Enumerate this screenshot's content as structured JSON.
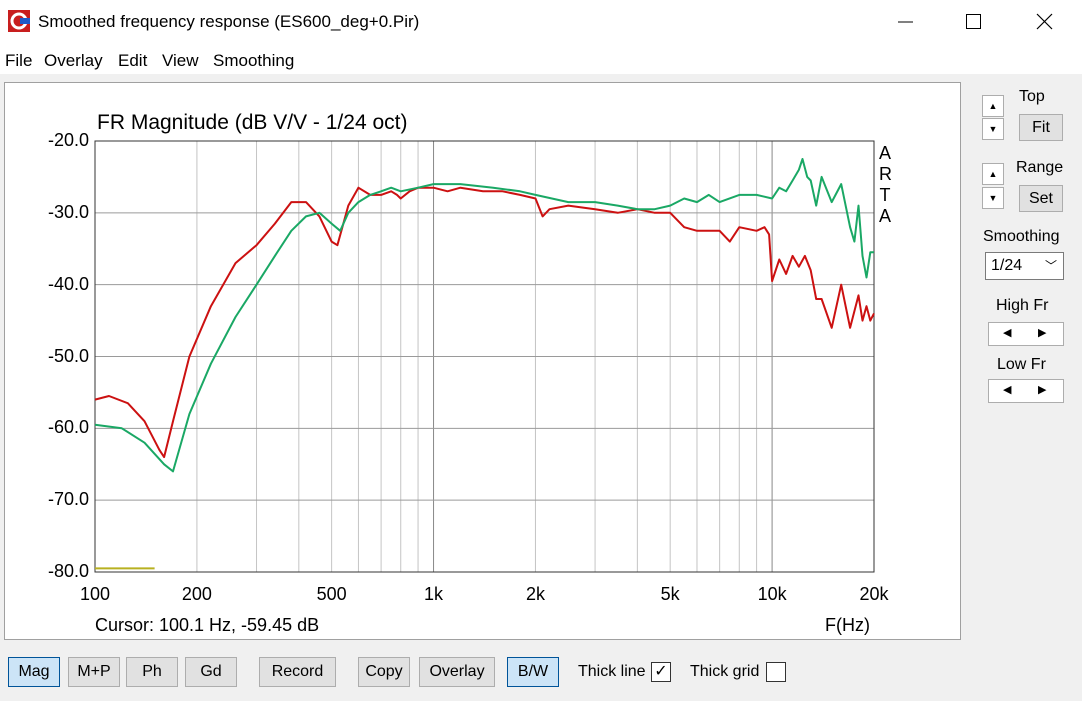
{
  "window": {
    "title": "Smoothed frequency response (ES600_deg+0.Pir)",
    "minimize_icon": "minimize-icon",
    "maximize_icon": "maximize-icon",
    "close_icon": "close-icon"
  },
  "menu": [
    "File",
    "Overlay",
    "Edit",
    "View",
    "Smoothing"
  ],
  "plot": {
    "title": "FR Magnitude (dB V/V - 1/24 oct)",
    "arta_letters": [
      "A",
      "R",
      "T",
      "A"
    ],
    "cursor_text": "Cursor: 100.1 Hz, -59.45 dB",
    "x_axis_label": "F(Hz)"
  },
  "side": {
    "top_label": "Top",
    "fit_label": "Fit",
    "range_label": "Range",
    "set_label": "Set",
    "smoothing_label": "Smoothing",
    "smoothing_value": "1/24",
    "high_fr_label": "High Fr",
    "low_fr_label": "Low Fr"
  },
  "bottom": {
    "mag": "Mag",
    "mp": "M+P",
    "ph": "Ph",
    "gd": "Gd",
    "record": "Record",
    "copy": "Copy",
    "overlay": "Overlay",
    "bw": "B/W",
    "thick_line": "Thick line",
    "thick_line_checked": true,
    "thick_grid": "Thick grid",
    "thick_grid_checked": false
  },
  "chart_data": {
    "type": "line",
    "title": "FR Magnitude (dB V/V - 1/24 oct)",
    "xlabel": "F(Hz)",
    "ylabel": "",
    "x_scale": "log",
    "xlim": [
      100,
      20000
    ],
    "ylim": [
      -80,
      -20
    ],
    "x_ticks": [
      "100",
      "200",
      "500",
      "1k",
      "2k",
      "5k",
      "10k",
      "20k"
    ],
    "y_ticks": [
      "-20.0",
      "-30.0",
      "-40.0",
      "-50.0",
      "-60.0",
      "-70.0",
      "-80.0"
    ],
    "grid": true,
    "series": [
      {
        "color": "#cc1111",
        "x": [
          100,
          110,
          125,
          140,
          155,
          160,
          170,
          190,
          220,
          260,
          300,
          340,
          380,
          420,
          460,
          500,
          520,
          560,
          600,
          650,
          700,
          750,
          780,
          800,
          850,
          900,
          1000,
          1100,
          1200,
          1400,
          1600,
          1800,
          2000,
          2100,
          2200,
          2500,
          3000,
          3500,
          4000,
          4500,
          5000,
          5500,
          6000,
          7000,
          7500,
          8000,
          9000,
          9500,
          9800,
          10000,
          10500,
          11000,
          11500,
          12000,
          12500,
          13000,
          13500,
          14000,
          15000,
          16000,
          17000,
          18000,
          18500,
          19000,
          19500,
          20000
        ],
        "y": [
          -56,
          -55.5,
          -56.5,
          -59,
          -63,
          -64,
          -59,
          -50,
          -43,
          -37,
          -34.5,
          -31.5,
          -28.5,
          -28.5,
          -30.5,
          -34,
          -34.5,
          -29,
          -26.5,
          -27.5,
          -27.5,
          -27,
          -27.5,
          -28,
          -27,
          -26.5,
          -26.5,
          -27,
          -26.5,
          -27,
          -27,
          -27.5,
          -28,
          -30.5,
          -29.5,
          -29,
          -29.5,
          -30,
          -29.5,
          -30,
          -30,
          -32,
          -32.5,
          -32.5,
          -34,
          -32,
          -32.5,
          -32,
          -33,
          -39.5,
          -36.5,
          -38.5,
          -36,
          -37.5,
          -36,
          -38,
          -42,
          -42,
          -46,
          -40,
          -46,
          -41.5,
          -45,
          -43,
          -45,
          -44
        ]
      },
      {
        "color": "#1aa865",
        "x": [
          100,
          120,
          140,
          160,
          170,
          190,
          220,
          260,
          300,
          340,
          380,
          420,
          460,
          500,
          530,
          560,
          600,
          650,
          700,
          750,
          800,
          900,
          1000,
          1200,
          1500,
          1800,
          2000,
          2500,
          3000,
          3500,
          4000,
          4500,
          5000,
          5500,
          6000,
          6500,
          7000,
          8000,
          9000,
          10000,
          10500,
          11000,
          11500,
          12000,
          12300,
          12700,
          13000,
          13500,
          14000,
          15000,
          16000,
          17000,
          17500,
          18000,
          18500,
          19000,
          19500,
          20000
        ],
        "y": [
          -59.5,
          -60,
          -62,
          -65,
          -66,
          -58,
          -51,
          -44.5,
          -40,
          -36,
          -32.5,
          -30.5,
          -30,
          -31.5,
          -32.5,
          -30,
          -28.5,
          -27.5,
          -27,
          -26.5,
          -27,
          -26.5,
          -26,
          -26,
          -26.5,
          -27,
          -27.5,
          -28.5,
          -28.5,
          -29,
          -29.5,
          -29.5,
          -29,
          -28,
          -28.5,
          -27.5,
          -28.5,
          -27.5,
          -27.5,
          -28,
          -26.5,
          -27,
          -25.5,
          -24,
          -22.5,
          -25,
          -25.5,
          -29,
          -25,
          -28.5,
          -26,
          -32,
          -34,
          -29,
          -36,
          -39,
          -35.5,
          -35.5
        ]
      },
      {
        "color": "#b8b020",
        "x": [
          100,
          150
        ],
        "y": [
          -79.5,
          -79.5
        ]
      }
    ]
  }
}
